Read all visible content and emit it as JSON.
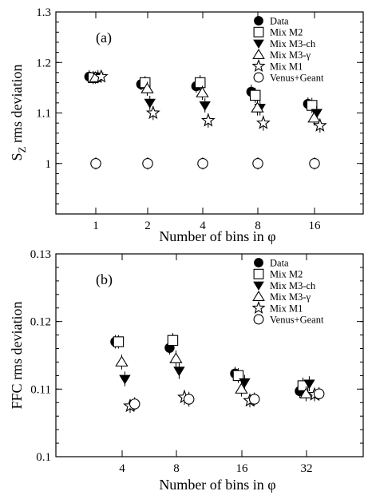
{
  "chart_data": [
    {
      "type": "scatter",
      "panel_label": "(a)",
      "xlabel": "Number of bins in φ",
      "ylabel_main": "S",
      "ylabel_sub": "Z",
      "ylabel_rest": " rms deviation",
      "categories": [
        "1",
        "2",
        "4",
        "8",
        "16"
      ],
      "ylim": [
        0.9,
        1.3
      ],
      "yticks": [
        1,
        1.1,
        1.2,
        1.3
      ],
      "ytick_labels": [
        "1",
        "1.1",
        "1.2",
        "1.3"
      ],
      "legend_position": "top-right",
      "series": [
        {
          "name": "Data",
          "marker": "filled-circle",
          "offset": -0.3,
          "values": [
            1.172,
            1.157,
            1.153,
            1.142,
            1.118
          ],
          "errors": [
            0.013,
            0.012,
            0.013,
            0.014,
            0.013
          ]
        },
        {
          "name": "Mix M2",
          "marker": "open-square",
          "offset": -0.12,
          "values": [
            1.17,
            1.16,
            1.16,
            1.135,
            1.115
          ],
          "errors": [
            0.013,
            0.013,
            0.015,
            0.015,
            0.015
          ]
        },
        {
          "name": "Mix M3-ch",
          "marker": "filled-triangle-down",
          "offset": 0.1,
          "values": [
            1.172,
            1.12,
            1.115,
            1.11,
            1.1
          ],
          "errors": [
            0.013,
            0.014,
            0.014,
            0.015,
            0.014
          ]
        },
        {
          "name": "Mix M3-γ",
          "marker": "open-triangle-up",
          "offset": -0.02,
          "values": [
            1.17,
            1.148,
            1.14,
            1.11,
            1.09
          ],
          "errors": [
            0.012,
            0.014,
            0.014,
            0.015,
            0.015
          ]
        },
        {
          "name": "Mix M1",
          "marker": "open-star",
          "offset": 0.25,
          "values": [
            1.172,
            1.1,
            1.085,
            1.08,
            1.075
          ],
          "errors": [
            0.012,
            0.014,
            0.014,
            0.015,
            0.014
          ]
        },
        {
          "name": "Venus+Geant",
          "marker": "open-circle",
          "offset": 0.0,
          "values": [
            1.0,
            1.0,
            1.0,
            1.0,
            1.0
          ],
          "errors": [
            0.012,
            0.012,
            0.012,
            0.012,
            0.012
          ]
        }
      ]
    },
    {
      "type": "scatter",
      "panel_label": "(b)",
      "xlabel": "Number of bins in φ",
      "ylabel_main": "FFC rms deviation",
      "ylabel_sub": "",
      "ylabel_rest": "",
      "categories": [
        "4",
        "8",
        "16",
        "32"
      ],
      "ylim": [
        0.1,
        0.13
      ],
      "yticks": [
        0.1,
        0.11,
        0.12,
        0.13
      ],
      "ytick_labels": [
        "0.1",
        "0.11",
        "0.12",
        "0.13"
      ],
      "legend_position": "top-right",
      "series": [
        {
          "name": "Data",
          "marker": "filled-circle",
          "offset": -0.3,
          "values": [
            0.117,
            0.1161,
            0.1123,
            0.1097
          ],
          "errors": [
            0.001,
            0.001,
            0.001,
            0.001
          ]
        },
        {
          "name": "Mix M2",
          "marker": "open-square",
          "offset": -0.16,
          "values": [
            0.117,
            0.1172,
            0.112,
            0.1105
          ],
          "errors": [
            0.001,
            0.0011,
            0.0011,
            0.0012
          ]
        },
        {
          "name": "Mix M3-ch",
          "marker": "filled-triangle-down",
          "offset": 0.12,
          "values": [
            0.1115,
            0.1127,
            0.111,
            0.1108
          ],
          "errors": [
            0.0011,
            0.0012,
            0.0011,
            0.0011
          ]
        },
        {
          "name": "Mix M3-γ",
          "marker": "open-triangle-up",
          "offset": -0.02,
          "values": [
            0.114,
            0.1145,
            0.11,
            0.1093
          ],
          "errors": [
            0.0011,
            0.0012,
            0.0011,
            0.0011
          ]
        },
        {
          "name": "Mix M1",
          "marker": "open-star",
          "offset": 0.35,
          "values": [
            0.1075,
            0.1088,
            0.1083,
            0.1092
          ],
          "errors": [
            0.001,
            0.0011,
            0.001,
            0.001
          ]
        },
        {
          "name": "Venus+Geant",
          "marker": "open-circle",
          "offset": 0.55,
          "values": [
            0.1078,
            0.1085,
            0.1085,
            0.1093
          ],
          "errors": [
            0.001,
            0.0011,
            0.001,
            0.001
          ]
        }
      ]
    }
  ]
}
